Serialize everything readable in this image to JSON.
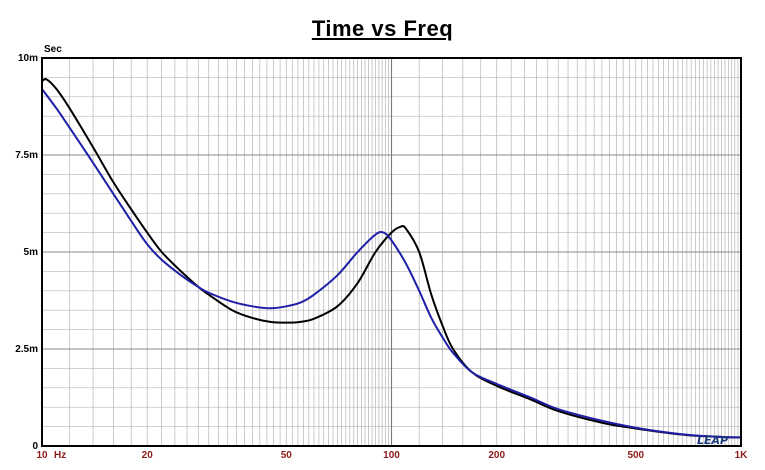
{
  "chart_data": {
    "type": "line",
    "title": "Time vs Freq",
    "y_unit": "Sec",
    "x_scale": "log",
    "xlim": [
      10,
      1000
    ],
    "ylim": [
      0,
      0.01
    ],
    "grid": true,
    "x_tick_labels": [
      {
        "value": 10,
        "label": "10"
      },
      {
        "value": 20,
        "label": "20"
      },
      {
        "value": 50,
        "label": "50"
      },
      {
        "value": 100,
        "label": "100"
      },
      {
        "value": 200,
        "label": "200"
      },
      {
        "value": 500,
        "label": "500"
      },
      {
        "value": 1000,
        "label": "1K"
      }
    ],
    "x_unit_label": "Hz",
    "y_tick_labels": [
      {
        "value": 0,
        "label": "0"
      },
      {
        "value": 0.0025,
        "label": "2.5m"
      },
      {
        "value": 0.005,
        "label": "5m"
      },
      {
        "value": 0.0075,
        "label": "7.5m"
      },
      {
        "value": 0.01,
        "label": "10m"
      }
    ],
    "watermark": "LEAP",
    "colors": {
      "black_series": "#000000",
      "blue_series": "#1f1fa8",
      "tick_x": "#8b1a1a",
      "grid": "#b4b4b4",
      "frame": "#000000"
    },
    "series": [
      {
        "color": "#000000",
        "points": [
          [
            10,
            0.0094
          ],
          [
            10.3,
            0.00945
          ],
          [
            11,
            0.0092
          ],
          [
            12,
            0.0087
          ],
          [
            14,
            0.0077
          ],
          [
            16,
            0.0068
          ],
          [
            18,
            0.0061
          ],
          [
            20,
            0.0055
          ],
          [
            22,
            0.005
          ],
          [
            25,
            0.0045
          ],
          [
            28,
            0.0041
          ],
          [
            30,
            0.0039
          ],
          [
            35,
            0.0035
          ],
          [
            40,
            0.0033
          ],
          [
            45,
            0.0032
          ],
          [
            50,
            0.00318
          ],
          [
            55,
            0.0032
          ],
          [
            60,
            0.00328
          ],
          [
            70,
            0.0036
          ],
          [
            80,
            0.0042
          ],
          [
            90,
            0.005
          ],
          [
            100,
            0.0055
          ],
          [
            106,
            0.00565
          ],
          [
            110,
            0.0056
          ],
          [
            120,
            0.005
          ],
          [
            130,
            0.0039
          ],
          [
            140,
            0.0031
          ],
          [
            150,
            0.0025
          ],
          [
            170,
            0.0019
          ],
          [
            200,
            0.00155
          ],
          [
            250,
            0.0012
          ],
          [
            300,
            0.0009
          ],
          [
            400,
            0.0006
          ],
          [
            500,
            0.00045
          ],
          [
            600,
            0.00035
          ],
          [
            700,
            0.00028
          ],
          [
            800,
            0.00025
          ],
          [
            900,
            0.00023
          ],
          [
            1000,
            0.00022
          ]
        ]
      },
      {
        "color": "#1f1fa8",
        "points": [
          [
            10,
            0.0092
          ],
          [
            11,
            0.0087
          ],
          [
            12,
            0.0082
          ],
          [
            14,
            0.0073
          ],
          [
            16,
            0.0065
          ],
          [
            18,
            0.0058
          ],
          [
            20,
            0.0052
          ],
          [
            22,
            0.0048
          ],
          [
            25,
            0.0044
          ],
          [
            28,
            0.0041
          ],
          [
            30,
            0.00395
          ],
          [
            35,
            0.00372
          ],
          [
            40,
            0.0036
          ],
          [
            45,
            0.00355
          ],
          [
            50,
            0.0036
          ],
          [
            55,
            0.0037
          ],
          [
            60,
            0.0039
          ],
          [
            70,
            0.0044
          ],
          [
            80,
            0.005
          ],
          [
            90,
            0.00545
          ],
          [
            95,
            0.0055
          ],
          [
            100,
            0.0053
          ],
          [
            110,
            0.0047
          ],
          [
            120,
            0.004
          ],
          [
            130,
            0.0033
          ],
          [
            140,
            0.0028
          ],
          [
            150,
            0.0024
          ],
          [
            170,
            0.0019
          ],
          [
            200,
            0.0016
          ],
          [
            250,
            0.00125
          ],
          [
            300,
            0.00095
          ],
          [
            400,
            0.00065
          ],
          [
            500,
            0.00047
          ],
          [
            600,
            0.00036
          ],
          [
            700,
            0.00029
          ],
          [
            800,
            0.00025
          ],
          [
            900,
            0.00023
          ],
          [
            1000,
            0.00022
          ]
        ]
      }
    ]
  }
}
